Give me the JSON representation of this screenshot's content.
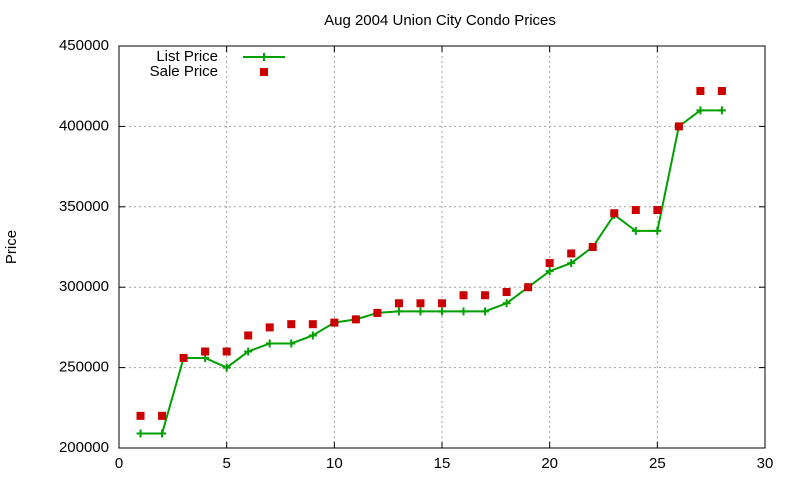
{
  "chart_data": {
    "type": "line",
    "title": "Aug 2004 Union City Condo Prices",
    "y_label": "Price",
    "x": [
      1,
      2,
      3,
      4,
      5,
      6,
      7,
      8,
      9,
      10,
      11,
      12,
      13,
      14,
      15,
      16,
      17,
      18,
      19,
      20,
      21,
      22,
      23,
      24,
      25,
      26,
      27,
      28
    ],
    "series": [
      {
        "name": "List Price",
        "color": "#00a000",
        "style": "linespoints",
        "values": [
          209000,
          209000,
          256000,
          256000,
          250000,
          260000,
          265000,
          265000,
          270000,
          278000,
          280000,
          284000,
          285000,
          285000,
          285000,
          285000,
          285000,
          290000,
          300000,
          310000,
          315000,
          325000,
          345000,
          335000,
          335000,
          400000,
          410000,
          410000
        ]
      },
      {
        "name": "Sale Price",
        "color": "#cc0000",
        "style": "points",
        "values": [
          220000,
          220000,
          256000,
          260000,
          260000,
          270000,
          275000,
          277000,
          277000,
          278000,
          280000,
          284000,
          290000,
          290000,
          290000,
          295000,
          295000,
          297000,
          300000,
          315000,
          321000,
          325000,
          346000,
          348000,
          348000,
          400000,
          422000,
          422000
        ]
      }
    ],
    "xlim": [
      0,
      30
    ],
    "xticks": [
      0,
      5,
      10,
      15,
      20,
      25,
      30
    ],
    "ylim": [
      200000,
      450000
    ],
    "yticks": [
      200000,
      250000,
      300000,
      350000,
      400000,
      450000
    ],
    "grid": true,
    "legend": "top-left"
  }
}
